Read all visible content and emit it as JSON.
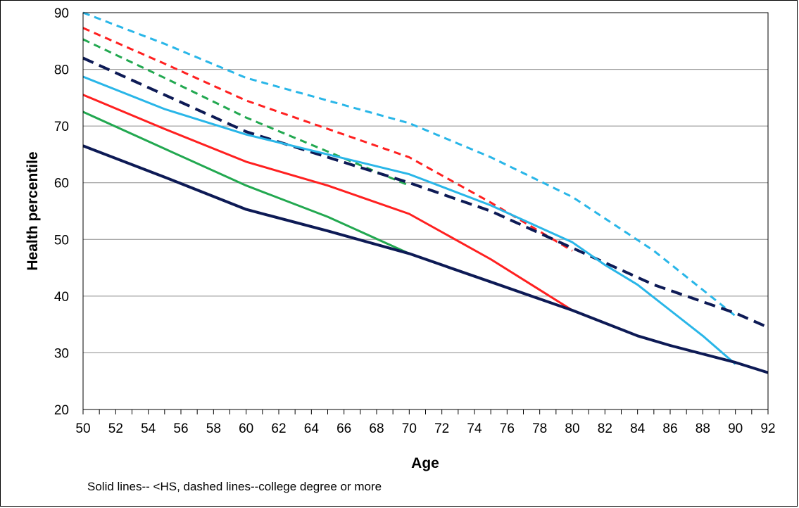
{
  "chart_data": {
    "type": "line",
    "xlabel": "Age",
    "ylabel": "Health percentile",
    "note": "Solid lines-- <HS, dashed lines--college degree or more",
    "xlim": [
      50,
      92
    ],
    "ylim": [
      20,
      90
    ],
    "x_ticks": [
      50,
      52,
      54,
      56,
      58,
      60,
      62,
      64,
      66,
      68,
      70,
      72,
      74,
      76,
      78,
      80,
      82,
      84,
      86,
      88,
      90,
      92
    ],
    "y_ticks": [
      20,
      30,
      40,
      50,
      60,
      70,
      80,
      90
    ],
    "grid": "horizontal",
    "series": [
      {
        "color": "#29B6E8",
        "style": "dashed",
        "width": 3,
        "x": [
          50,
          55,
          60,
          65,
          70,
          75,
          80,
          85,
          90
        ],
        "y": [
          90,
          84.5,
          78.5,
          74.5,
          70.5,
          64.5,
          57.5,
          48,
          36.5
        ]
      },
      {
        "color": "#FF2020",
        "style": "dashed",
        "width": 3,
        "x": [
          50,
          55,
          60,
          65,
          70,
          75,
          80
        ],
        "y": [
          87.3,
          81,
          74.5,
          69.5,
          64.5,
          56.5,
          48
        ]
      },
      {
        "color": "#22A850",
        "style": "dashed",
        "width": 3,
        "x": [
          50,
          55,
          60,
          65,
          70
        ],
        "y": [
          85.3,
          78.5,
          71.5,
          65.5,
          59.5
        ]
      },
      {
        "color": "#0D1A55",
        "style": "dashed",
        "width": 4,
        "x": [
          50,
          55,
          60,
          65,
          70,
          75,
          80,
          85,
          90,
          92
        ],
        "y": [
          82,
          75.5,
          69,
          64.5,
          60,
          55,
          48.5,
          42,
          37,
          34.5
        ]
      },
      {
        "color": "#29B6E8",
        "style": "solid",
        "width": 3,
        "x": [
          50,
          55,
          60,
          65,
          70,
          75,
          80,
          82,
          84,
          86,
          88,
          90
        ],
        "y": [
          78.7,
          73,
          68.5,
          65,
          61.5,
          56,
          49.5,
          45.5,
          42,
          37.5,
          33,
          28
        ]
      },
      {
        "color": "#FF2020",
        "style": "solid",
        "width": 3,
        "x": [
          50,
          55,
          60,
          65,
          70,
          75,
          80
        ],
        "y": [
          75.5,
          69.5,
          63.7,
          59.5,
          54.5,
          46.5,
          37.5
        ]
      },
      {
        "color": "#22A850",
        "style": "solid",
        "width": 3,
        "x": [
          50,
          55,
          60,
          65,
          70
        ],
        "y": [
          72.5,
          66,
          59.5,
          54,
          47.5
        ]
      },
      {
        "color": "#0D1A55",
        "style": "solid",
        "width": 4,
        "x": [
          50,
          55,
          60,
          65,
          70,
          75,
          80,
          84,
          86,
          90,
          92
        ],
        "y": [
          66.5,
          61,
          55.3,
          51.5,
          47.5,
          42.5,
          37.5,
          33,
          31.3,
          28.3,
          26.5
        ]
      }
    ]
  }
}
